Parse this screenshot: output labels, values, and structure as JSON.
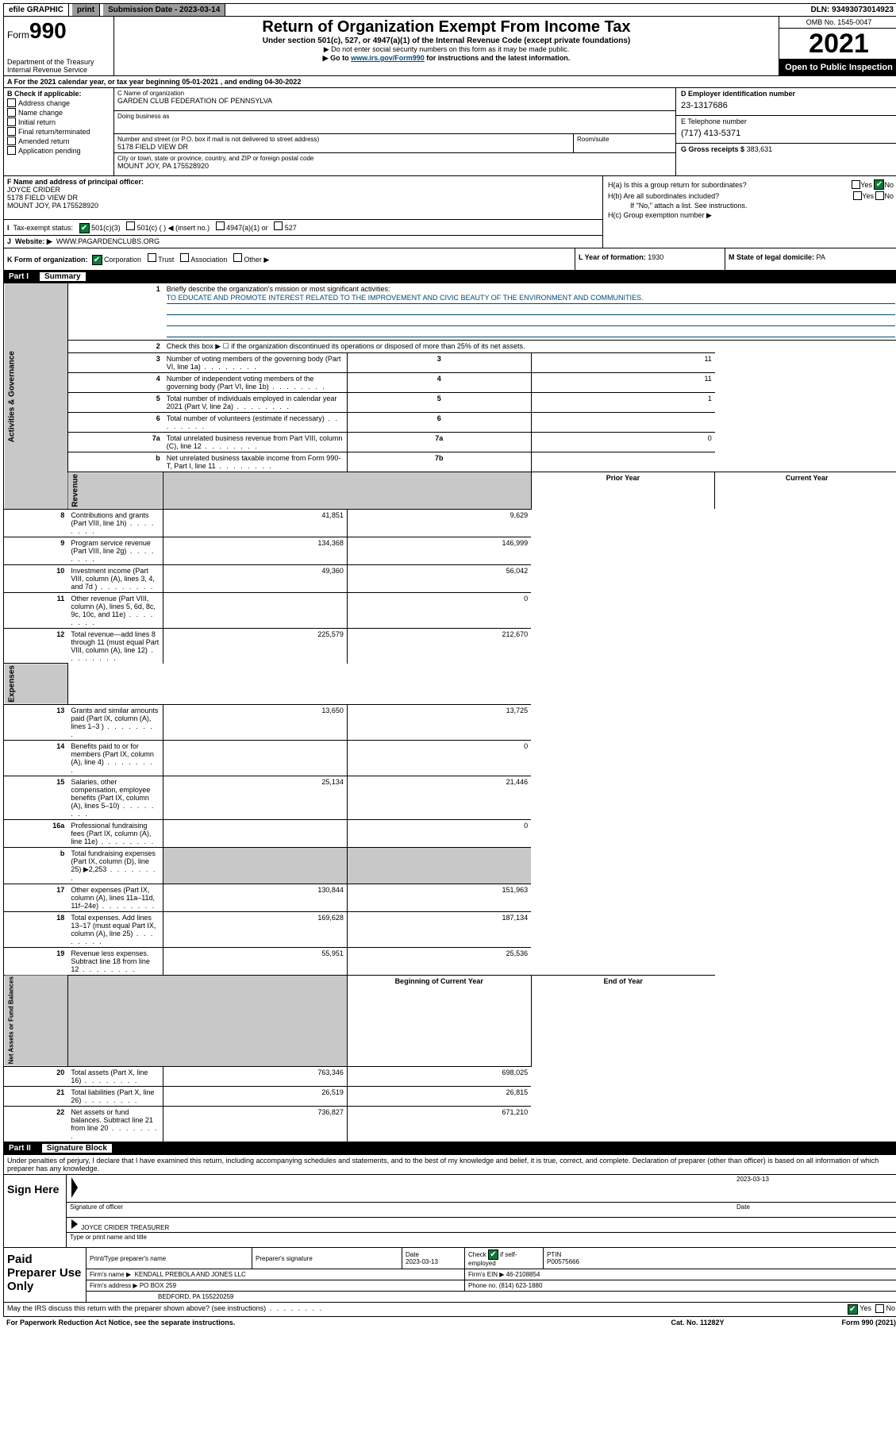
{
  "top": {
    "efile": "efile GRAPHIC",
    "print": "print",
    "sub_label": "Submission Date - 2023-03-14",
    "dln": "DLN: 93493073014923"
  },
  "header": {
    "form_sm": "Form",
    "form_big": "990",
    "dept": "Department of the Treasury",
    "irs": "Internal Revenue Service",
    "title": "Return of Organization Exempt From Income Tax",
    "sub1": "Under section 501(c), 527, or 4947(a)(1) of the Internal Revenue Code (except private foundations)",
    "sub2": "▶ Do not enter social security numbers on this form as it may be made public.",
    "sub3_pre": "▶ Go to ",
    "sub3_link": "www.irs.gov/Form990",
    "sub3_post": " for instructions and the latest information.",
    "omb": "OMB No. 1545-0047",
    "year": "2021",
    "inspection": "Open to Public Inspection"
  },
  "rowA": "A For the 2021 calendar year, or tax year beginning 05-01-2021   , and ending 04-30-2022",
  "colB": {
    "label": "B Check if applicable:",
    "opts": [
      "Address change",
      "Name change",
      "Initial return",
      "Final return/terminated",
      "Amended return",
      "Application pending"
    ]
  },
  "colC": {
    "name_label": "C Name of organization",
    "name": "GARDEN CLUB FEDERATION OF PENNSYLVA",
    "dba_label": "Doing business as",
    "dba": "",
    "street_label": "Number and street (or P.O. box if mail is not delivered to street address)",
    "street": "5178 FIELD VIEW DR",
    "room_label": "Room/suite",
    "room": "",
    "city_label": "City or town, state or province, country, and ZIP or foreign postal code",
    "city": "MOUNT JOY, PA  175528920"
  },
  "colD": {
    "d_label": "D Employer identification number",
    "d_val": "23-1317686",
    "e_label": "E Telephone number",
    "e_val": "(717) 413-5371",
    "g_label": "G Gross receipts $",
    "g_val": "383,631"
  },
  "colF": {
    "f_label": "F Name and address of principal officer:",
    "f_name": "JOYCE CRIDER",
    "f_addr1": "5178 FIELD VIEW DR",
    "f_addr2": "MOUNT JOY, PA  175528920",
    "i_label": "Tax-exempt status:",
    "i_opt1": "501(c)(3)",
    "i_opt2": "501(c) (  ) ◀ (insert no.)",
    "i_opt3": "4947(a)(1) or",
    "i_opt4": "527",
    "j_label": "Website: ▶",
    "j_val": "WWW.PAGARDENCLUBS.ORG"
  },
  "colH": {
    "ha_label": "H(a)  Is this a group return for subordinates?",
    "hb_label": "H(b)  Are all subordinates included?",
    "hb_note": "If \"No,\" attach a list. See instructions.",
    "hc_label": "H(c)  Group exemption number ▶",
    "yes": "Yes",
    "no": "No"
  },
  "rowK": {
    "k_label": "K Form of organization:",
    "k_corp": "Corporation",
    "k_trust": "Trust",
    "k_assoc": "Association",
    "k_other": "Other ▶",
    "l_label": "L Year of formation: ",
    "l_val": "1930",
    "m_label": "M State of legal domicile: ",
    "m_val": "PA"
  },
  "part1": "Part I",
  "summary": "Summary",
  "mission_label": "Briefly describe the organization's mission or most significant activities:",
  "mission": "TO EDUCATE AND PROMOTE INTEREST RELATED TO THE IMPROVEMENT AND CIVIC BEAUTY OF THE ENVIRONMENT AND COMMUNITIES.",
  "line2": "Check this box ▶ ☐  if the organization discontinued its operations or disposed of more than 25% of its net assets.",
  "vtabs": {
    "gov": "Activities & Governance",
    "rev": "Revenue",
    "exp": "Expenses",
    "net": "Net Assets or Fund Balances"
  },
  "col_prior": "Prior Year",
  "col_curr": "Current Year",
  "col_beg": "Beginning of Current Year",
  "col_end": "End of Year",
  "rows_gov": [
    {
      "n": "3",
      "d": "Number of voting members of the governing body (Part VI, line 1a)",
      "l": "3",
      "v": "11"
    },
    {
      "n": "4",
      "d": "Number of independent voting members of the governing body (Part VI, line 1b)",
      "l": "4",
      "v": "11"
    },
    {
      "n": "5",
      "d": "Total number of individuals employed in calendar year 2021 (Part V, line 2a)",
      "l": "5",
      "v": "1"
    },
    {
      "n": "6",
      "d": "Total number of volunteers (estimate if necessary)",
      "l": "6",
      "v": ""
    },
    {
      "n": "7a",
      "d": "Total unrelated business revenue from Part VIII, column (C), line 12",
      "l": "7a",
      "v": "0"
    },
    {
      "n": "b",
      "d": "Net unrelated business taxable income from Form 990-T, Part I, line 11",
      "l": "7b",
      "v": ""
    }
  ],
  "rows_rev": [
    {
      "n": "8",
      "d": "Contributions and grants (Part VIII, line 1h)",
      "p": "41,851",
      "c": "9,629"
    },
    {
      "n": "9",
      "d": "Program service revenue (Part VIII, line 2g)",
      "p": "134,368",
      "c": "146,999"
    },
    {
      "n": "10",
      "d": "Investment income (Part VIII, column (A), lines 3, 4, and 7d )",
      "p": "49,360",
      "c": "56,042"
    },
    {
      "n": "11",
      "d": "Other revenue (Part VIII, column (A), lines 5, 6d, 8c, 9c, 10c, and 11e)",
      "p": "",
      "c": "0"
    },
    {
      "n": "12",
      "d": "Total revenue—add lines 8 through 11 (must equal Part VIII, column (A), line 12)",
      "p": "225,579",
      "c": "212,670"
    }
  ],
  "rows_exp": [
    {
      "n": "13",
      "d": "Grants and similar amounts paid (Part IX, column (A), lines 1–3 )",
      "p": "13,650",
      "c": "13,725"
    },
    {
      "n": "14",
      "d": "Benefits paid to or for members (Part IX, column (A), line 4)",
      "p": "",
      "c": "0"
    },
    {
      "n": "15",
      "d": "Salaries, other compensation, employee benefits (Part IX, column (A), lines 5–10)",
      "p": "25,134",
      "c": "21,446"
    },
    {
      "n": "16a",
      "d": "Professional fundraising fees (Part IX, column (A), line 11e)",
      "p": "",
      "c": "0"
    },
    {
      "n": "b",
      "d": "Total fundraising expenses (Part IX, column (D), line 25) ▶2,253",
      "p": null,
      "c": null
    },
    {
      "n": "17",
      "d": "Other expenses (Part IX, column (A), lines 11a–11d, 11f–24e)",
      "p": "130,844",
      "c": "151,963"
    },
    {
      "n": "18",
      "d": "Total expenses. Add lines 13–17 (must equal Part IX, column (A), line 25)",
      "p": "169,628",
      "c": "187,134"
    },
    {
      "n": "19",
      "d": "Revenue less expenses. Subtract line 18 from line 12",
      "p": "55,951",
      "c": "25,536"
    }
  ],
  "rows_net": [
    {
      "n": "20",
      "d": "Total assets (Part X, line 16)",
      "p": "763,346",
      "c": "698,025"
    },
    {
      "n": "21",
      "d": "Total liabilities (Part X, line 26)",
      "p": "26,519",
      "c": "26,815"
    },
    {
      "n": "22",
      "d": "Net assets or fund balances. Subtract line 21 from line 20",
      "p": "736,827",
      "c": "671,210"
    }
  ],
  "part2": "Part II",
  "sigblock": "Signature Block",
  "penalty": "Under penalties of perjury, I declare that I have examined this return, including accompanying schedules and statements, and to the best of my knowledge and belief, it is true, correct, and complete. Declaration of preparer (other than officer) is based on all information of which preparer has any knowledge.",
  "sign_here": "Sign Here",
  "sig_officer_label": "Signature of officer",
  "sig_date_label": "Date",
  "sig_date": "2023-03-13",
  "sig_name": "JOYCE CRIDER  TREASURER",
  "sig_name_label": "Type or print name and title",
  "paid_prep": "Paid Preparer Use Only",
  "prep": {
    "h1": "Print/Type preparer's name",
    "h2": "Preparer's signature",
    "h3": "Date",
    "h3v": "2023-03-13",
    "h4a": "Check",
    "h4b": "if self-employed",
    "h5": "PTIN",
    "h5v": "P00575666",
    "firm_label": "Firm's name   ▶",
    "firm": "KENDALL PREBOLA AND JONES LLC",
    "ein_label": "Firm's EIN ▶",
    "ein": "46-2108854",
    "addr_label": "Firm's address ▶",
    "addr1": "PO BOX 259",
    "addr2": "BEDFORD, PA  155220259",
    "phone_label": "Phone no.",
    "phone": "(814) 623-1880"
  },
  "may_irs": "May the IRS discuss this return with the preparer shown above? (see instructions)",
  "footer_left": "For Paperwork Reduction Act Notice, see the separate instructions.",
  "footer_mid": "Cat. No. 11282Y",
  "footer_right": "Form 990 (2021)"
}
